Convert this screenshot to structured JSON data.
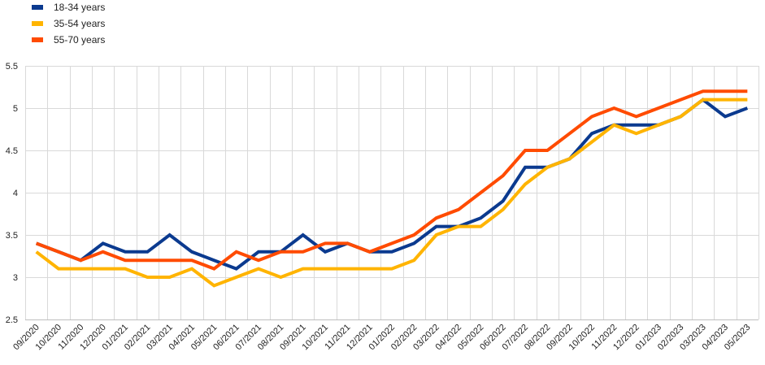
{
  "chart_data": {
    "type": "line",
    "x": [
      "09/2020",
      "10/2020",
      "11/2020",
      "12/2020",
      "01/2021",
      "02/2021",
      "03/2021",
      "04/2021",
      "05/2021",
      "06/2021",
      "07/2021",
      "08/2021",
      "09/2021",
      "10/2021",
      "11/2021",
      "12/2021",
      "01/2022",
      "02/2022",
      "03/2022",
      "04/2022",
      "05/2022",
      "06/2022",
      "07/2022",
      "08/2022",
      "09/2022",
      "10/2022",
      "11/2022",
      "12/2022",
      "01/2023",
      "02/2023",
      "03/2023",
      "04/2023",
      "05/2023"
    ],
    "ylim": [
      2.5,
      5.5
    ],
    "yticks": [
      "2.5",
      "3",
      "3.5",
      "4",
      "4.5",
      "5",
      "5.5"
    ],
    "grid": true,
    "legend_position": "top-left",
    "series": [
      {
        "name": "18-34 years",
        "color": "#0b3a8f",
        "values": [
          3.4,
          3.3,
          3.2,
          3.4,
          3.3,
          3.3,
          3.5,
          3.3,
          3.2,
          3.1,
          3.3,
          3.3,
          3.5,
          3.3,
          3.4,
          3.3,
          3.3,
          3.4,
          3.6,
          3.6,
          3.7,
          3.9,
          4.3,
          4.3,
          4.4,
          4.7,
          4.8,
          4.8,
          4.8,
          4.9,
          5.1,
          4.9,
          5.0
        ]
      },
      {
        "name": "35-54 years",
        "color": "#ffb400",
        "values": [
          3.3,
          3.1,
          3.1,
          3.1,
          3.1,
          3.0,
          3.0,
          3.1,
          2.9,
          3.0,
          3.1,
          3.0,
          3.1,
          3.1,
          3.1,
          3.1,
          3.1,
          3.2,
          3.5,
          3.6,
          3.6,
          3.8,
          4.1,
          4.3,
          4.4,
          4.6,
          4.8,
          4.7,
          4.8,
          4.9,
          5.1,
          5.1,
          5.1
        ]
      },
      {
        "name": "55-70 years",
        "color": "#ff4b00",
        "values": [
          3.4,
          3.3,
          3.2,
          3.3,
          3.2,
          3.2,
          3.2,
          3.2,
          3.1,
          3.3,
          3.2,
          3.3,
          3.3,
          3.4,
          3.4,
          3.3,
          3.4,
          3.5,
          3.7,
          3.8,
          4.0,
          4.2,
          4.5,
          4.5,
          4.7,
          4.9,
          5.0,
          4.9,
          5.0,
          5.1,
          5.2,
          5.2,
          5.2
        ]
      }
    ]
  }
}
